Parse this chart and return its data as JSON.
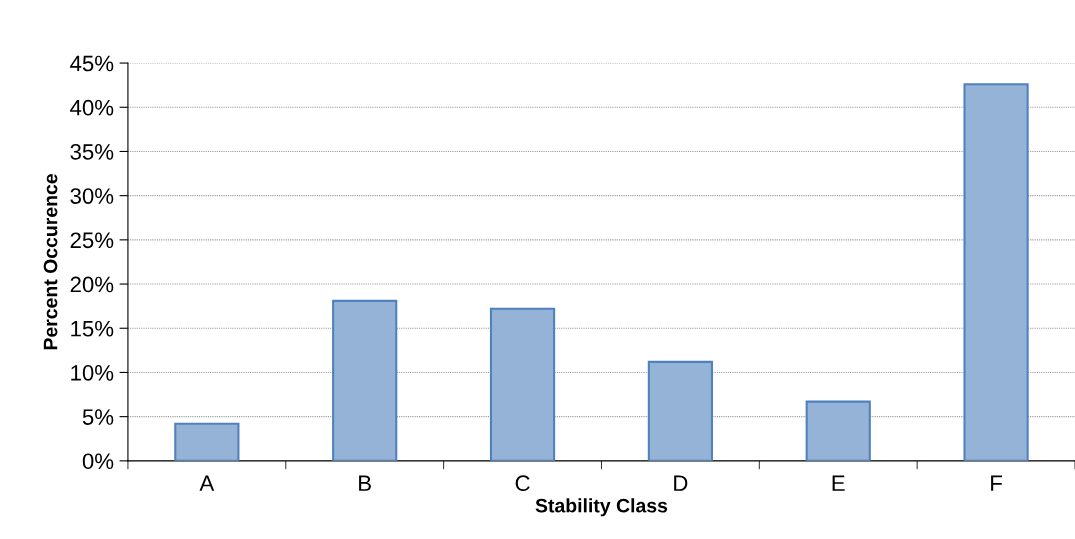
{
  "chart_data": {
    "type": "bar",
    "xlabel": "Stability Class",
    "ylabel": "Percent Occurence",
    "categories": [
      "A",
      "B",
      "C",
      "D",
      "E",
      "F"
    ],
    "values": [
      4.2,
      18.1,
      17.2,
      11.2,
      6.7,
      42.6
    ],
    "color": "#95b3d7",
    "ylim": [
      0,
      45
    ],
    "yticks": [
      {
        "value": 0,
        "label": "0%"
      },
      {
        "value": 5,
        "label": "5%"
      },
      {
        "value": 10,
        "label": "10%"
      },
      {
        "value": 15,
        "label": "15%"
      },
      {
        "value": 20,
        "label": "20%"
      },
      {
        "value": 25,
        "label": "25%"
      },
      {
        "value": 30,
        "label": "30%"
      },
      {
        "value": 35,
        "label": "35%"
      },
      {
        "value": 40,
        "label": "40%"
      },
      {
        "value": 45,
        "label": "45%"
      }
    ],
    "grid": "y"
  }
}
